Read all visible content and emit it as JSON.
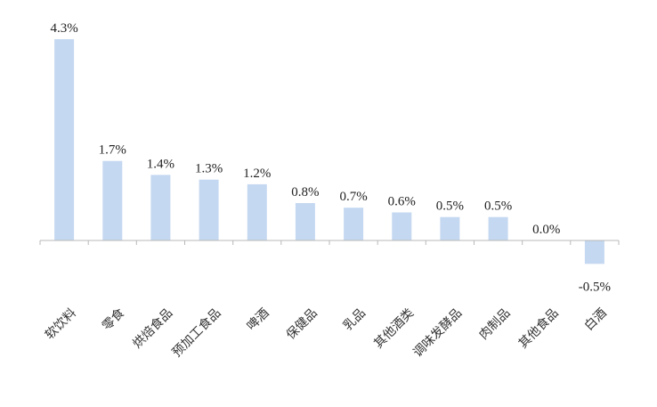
{
  "chart_data": {
    "type": "bar",
    "title": "",
    "xlabel": "",
    "ylabel": "",
    "categories": [
      "软饮料",
      "零食",
      "烘焙食品",
      "预加工食品",
      "啤酒",
      "保健品",
      "乳品",
      "其他酒类",
      "调味发酵品",
      "肉制品",
      "其他食品",
      "白酒"
    ],
    "values": [
      4.3,
      1.7,
      1.4,
      1.3,
      1.2,
      0.8,
      0.7,
      0.6,
      0.5,
      0.5,
      0.0,
      -0.5
    ],
    "value_labels": [
      "4.3%",
      "1.7%",
      "1.4%",
      "1.3%",
      "1.2%",
      "0.8%",
      "0.7%",
      "0.6%",
      "0.5%",
      "0.5%",
      "0.0%",
      "-0.5%"
    ],
    "ylim": [
      -0.6,
      4.5
    ],
    "grid": false,
    "legend": "none",
    "colors": {
      "bar": "#c5d8f1",
      "axis": "#b8b8b8",
      "text": "#222222"
    }
  }
}
